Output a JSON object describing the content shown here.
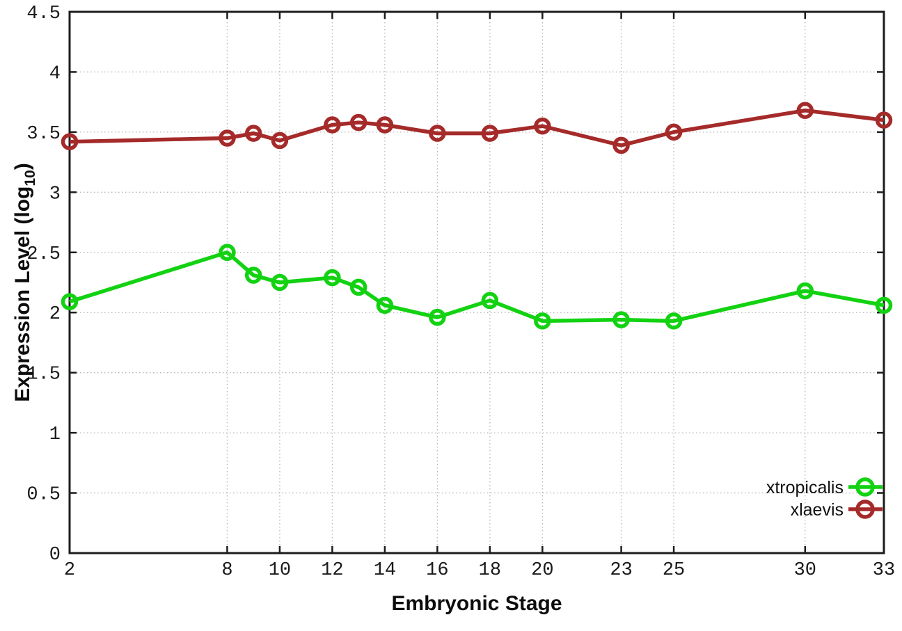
{
  "labels": {
    "xlabel": "Embryonic Stage",
    "ylabel_prefix": "Expression Level (log",
    "ylabel_sub": "10",
    "ylabel_suffix": ")"
  },
  "chart_data": {
    "type": "line",
    "x": [
      2,
      8,
      9,
      10,
      12,
      13,
      14,
      16,
      18,
      20,
      23,
      25,
      30,
      33
    ],
    "series": [
      {
        "name": "xtropicalis",
        "color": "#12d212",
        "values": [
          2.09,
          2.5,
          2.31,
          2.25,
          2.29,
          2.21,
          2.06,
          1.96,
          2.1,
          1.93,
          1.94,
          1.93,
          2.18,
          2.06
        ]
      },
      {
        "name": "xlaevis",
        "color": "#a52a2a",
        "values": [
          3.42,
          3.45,
          3.49,
          3.43,
          3.56,
          3.58,
          3.56,
          3.49,
          3.49,
          3.55,
          3.39,
          3.5,
          3.68,
          3.6
        ]
      }
    ],
    "xlabel": "Embryonic Stage",
    "ylabel": "Expression Level (log10)",
    "xlim": [
      2,
      33
    ],
    "ylim": [
      0,
      4.5
    ],
    "x_ticks": [
      2,
      8,
      10,
      12,
      14,
      16,
      18,
      20,
      23,
      25,
      30,
      33
    ],
    "x_tick_labels": [
      "2",
      "8",
      "10",
      "12",
      "14",
      "16",
      "18",
      "20",
      "23",
      "25",
      "30",
      "33"
    ],
    "y_ticks": [
      0,
      0.5,
      1,
      1.5,
      2,
      2.5,
      3,
      3.5,
      4,
      4.5
    ],
    "y_tick_labels": [
      "0",
      "0.5",
      "1",
      "1.5",
      "2",
      "2.5",
      "3",
      "3.5",
      "4",
      "4.5"
    ],
    "grid": true,
    "grid_color": "#b5b5b5",
    "border_color": "#1c1c1c",
    "legend_position": "bottom-right",
    "legend": [
      "xtropicalis",
      "xlaevis"
    ]
  }
}
